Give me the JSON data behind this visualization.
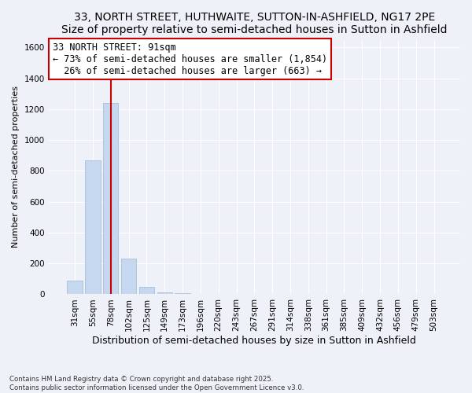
{
  "title": "33, NORTH STREET, HUTHWAITE, SUTTON-IN-ASHFIELD, NG17 2PE",
  "subtitle": "Size of property relative to semi-detached houses in Sutton in Ashfield",
  "xlabel": "Distribution of semi-detached houses by size in Sutton in Ashfield",
  "ylabel": "Number of semi-detached properties",
  "bins": [
    "31sqm",
    "55sqm",
    "78sqm",
    "102sqm",
    "125sqm",
    "149sqm",
    "173sqm",
    "196sqm",
    "220sqm",
    "243sqm",
    "267sqm",
    "291sqm",
    "314sqm",
    "338sqm",
    "361sqm",
    "385sqm",
    "409sqm",
    "432sqm",
    "456sqm",
    "479sqm",
    "503sqm"
  ],
  "values": [
    90,
    870,
    1240,
    230,
    50,
    15,
    8,
    4,
    2,
    1,
    0,
    0,
    0,
    0,
    0,
    0,
    0,
    0,
    0,
    0,
    0
  ],
  "property_bin_index": 2,
  "property_sqm": 91,
  "pct_smaller": 73,
  "n_smaller": 1854,
  "pct_larger": 26,
  "n_larger": 663,
  "bar_color": "#c5d8f0",
  "bar_edge_color": "#a8bfd8",
  "vline_color": "#cc0000",
  "box_edge_color": "#cc0000",
  "box_face_color": "white",
  "annotation_fontsize": 8.5,
  "title_fontsize": 10,
  "subtitle_fontsize": 9,
  "xlabel_fontsize": 9,
  "ylabel_fontsize": 8,
  "tick_fontsize": 7.5,
  "ylim": [
    0,
    1650
  ],
  "yticks": [
    0,
    200,
    400,
    600,
    800,
    1000,
    1200,
    1400,
    1600
  ],
  "footnote": "Contains HM Land Registry data © Crown copyright and database right 2025.\nContains public sector information licensed under the Open Government Licence v3.0.",
  "bg_color": "#eef2f8"
}
